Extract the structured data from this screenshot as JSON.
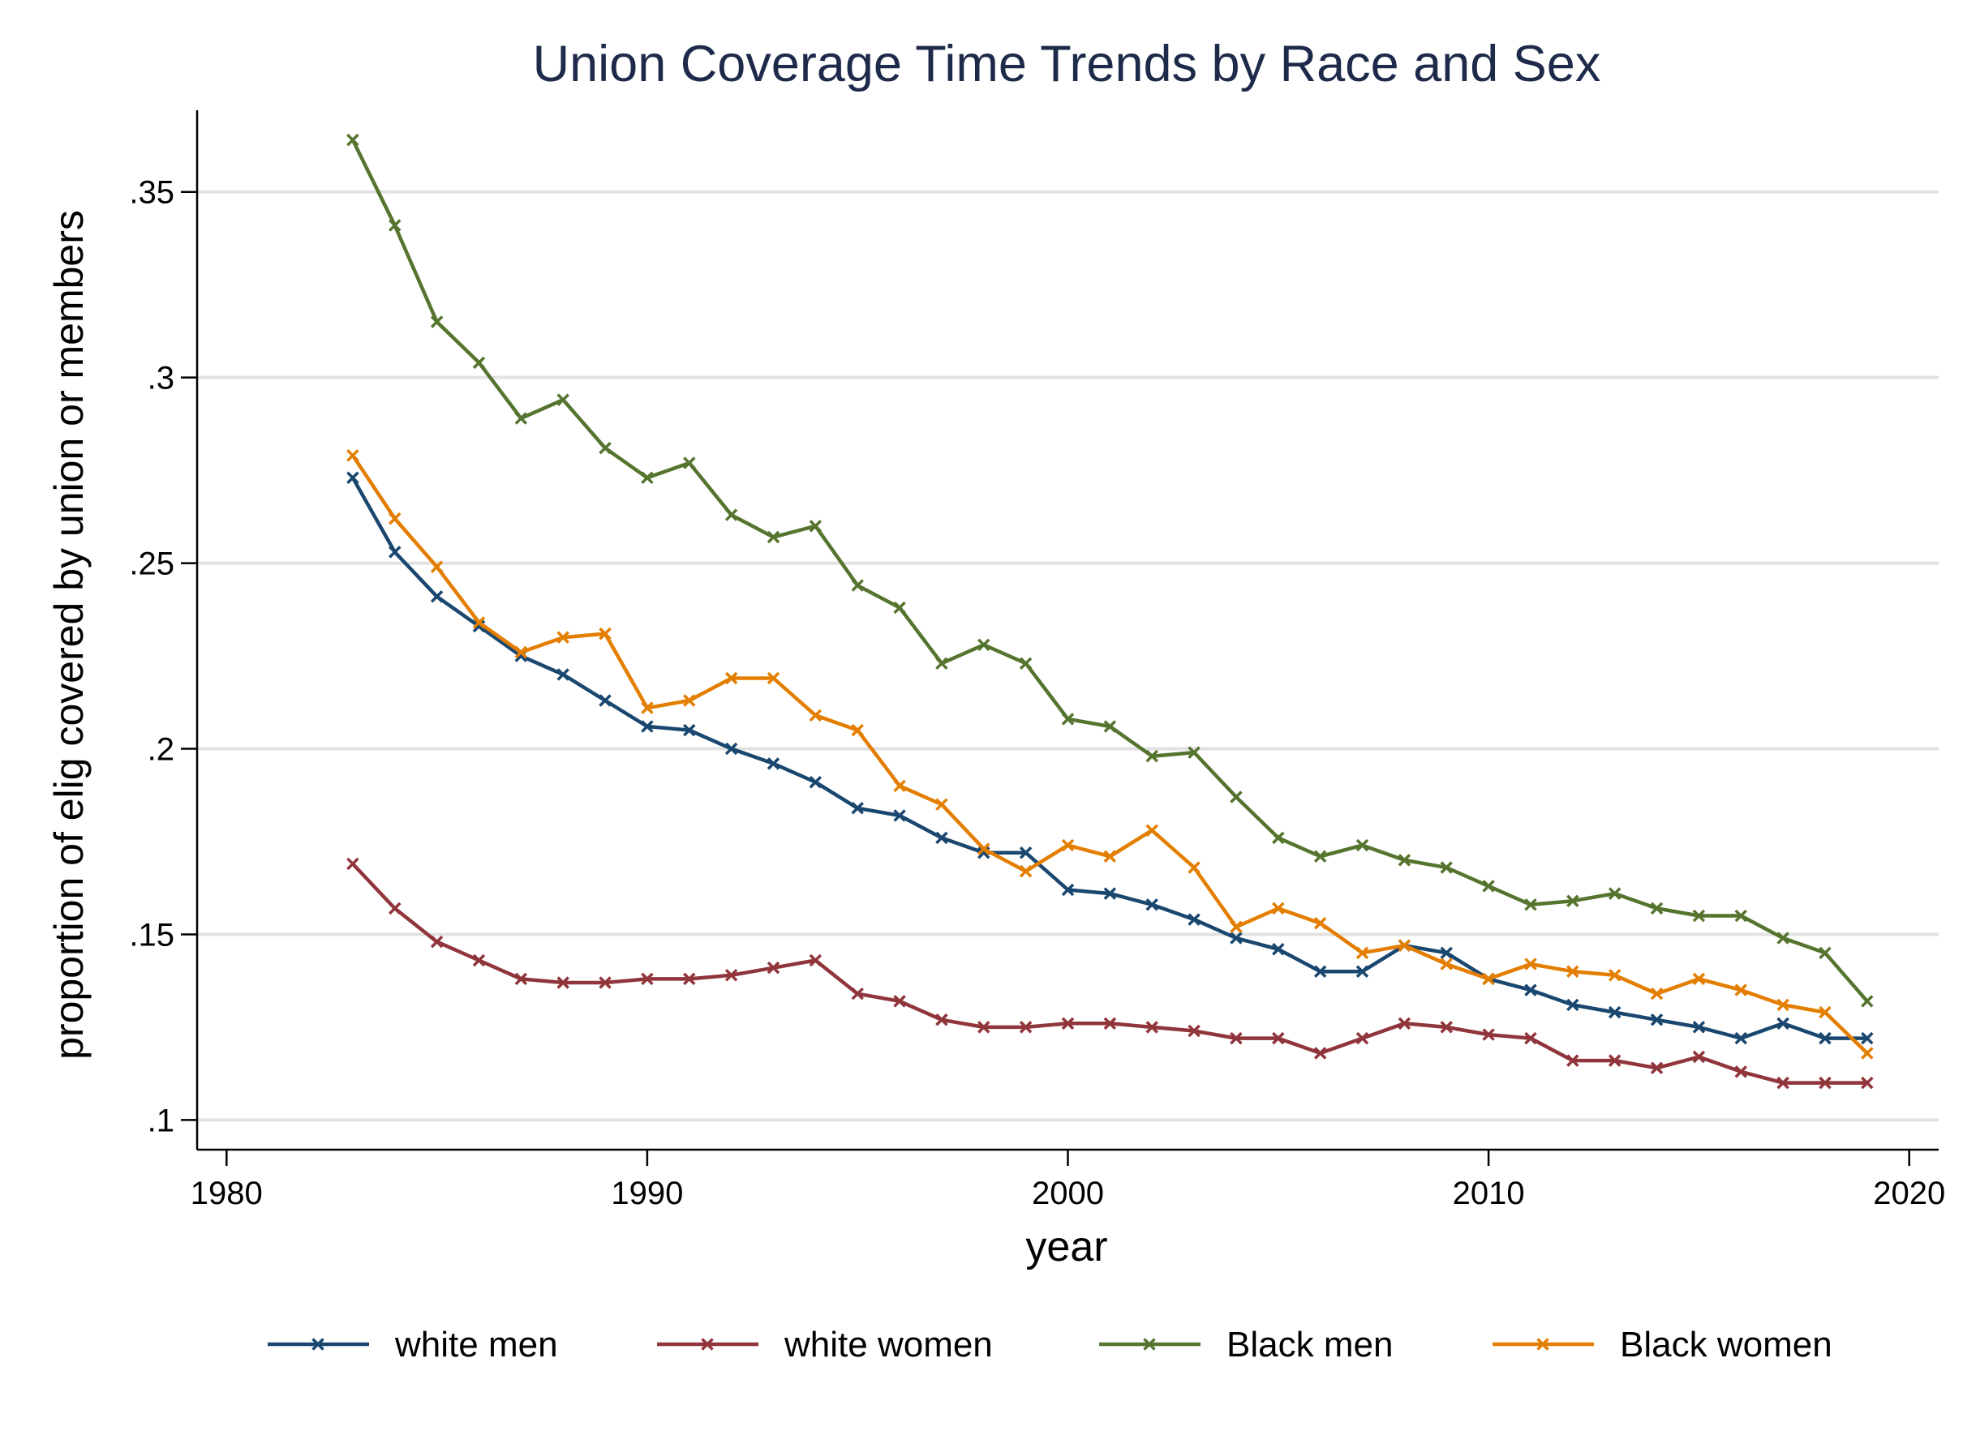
{
  "chart_data": {
    "type": "line",
    "title": "Union Coverage Time Trends by Race and Sex",
    "xlabel": "year",
    "ylabel": "proportion of elig covered by union or members",
    "xlim": [
      1979.3,
      2020.7
    ],
    "ylim": [
      0.092,
      0.372
    ],
    "x_ticks": [
      1980,
      1990,
      2000,
      2010,
      2020
    ],
    "y_ticks": [
      0.1,
      0.15,
      0.2,
      0.25,
      0.3,
      0.35
    ],
    "y_tick_labels": [
      ".1",
      ".15",
      ".2",
      ".25",
      ".3",
      ".35"
    ],
    "grid": "horizontal",
    "legend_position": "bottom",
    "marker": "x",
    "x": [
      1983,
      1984,
      1985,
      1986,
      1987,
      1988,
      1989,
      1990,
      1991,
      1992,
      1993,
      1994,
      1995,
      1996,
      1997,
      1998,
      1999,
      2000,
      2001,
      2002,
      2003,
      2004,
      2005,
      2006,
      2007,
      2008,
      2009,
      2010,
      2011,
      2012,
      2013,
      2014,
      2015,
      2016,
      2017,
      2018,
      2019
    ],
    "series": [
      {
        "name": "white men",
        "color": "#1a476f",
        "values": [
          0.273,
          0.253,
          0.241,
          0.233,
          0.225,
          0.22,
          0.213,
          0.206,
          0.205,
          0.2,
          0.196,
          0.191,
          0.184,
          0.182,
          0.176,
          0.172,
          0.172,
          0.162,
          0.161,
          0.158,
          0.154,
          0.149,
          0.146,
          0.14,
          0.14,
          0.147,
          0.145,
          0.138,
          0.135,
          0.131,
          0.129,
          0.127,
          0.125,
          0.122,
          0.126,
          0.122,
          0.122
        ]
      },
      {
        "name": "white women",
        "color": "#90353b",
        "values": [
          0.169,
          0.157,
          0.148,
          0.143,
          0.138,
          0.137,
          0.137,
          0.138,
          0.138,
          0.139,
          0.141,
          0.143,
          0.134,
          0.132,
          0.127,
          0.125,
          0.125,
          0.126,
          0.126,
          0.125,
          0.124,
          0.122,
          0.122,
          0.118,
          0.122,
          0.126,
          0.125,
          0.123,
          0.122,
          0.116,
          0.116,
          0.114,
          0.117,
          0.113,
          0.11,
          0.11,
          0.11
        ]
      },
      {
        "name": "Black men",
        "color": "#55752f",
        "values": [
          0.364,
          0.341,
          0.315,
          0.304,
          0.289,
          0.294,
          0.281,
          0.273,
          0.277,
          0.263,
          0.257,
          0.26,
          0.244,
          0.238,
          0.223,
          0.228,
          0.223,
          0.208,
          0.206,
          0.198,
          0.199,
          0.187,
          0.176,
          0.171,
          0.174,
          0.17,
          0.168,
          0.163,
          0.158,
          0.159,
          0.161,
          0.157,
          0.155,
          0.155,
          0.149,
          0.145,
          0.132
        ]
      },
      {
        "name": "Black women",
        "color": "#e37e00",
        "values": [
          0.279,
          0.262,
          0.249,
          0.234,
          0.226,
          0.23,
          0.231,
          0.211,
          0.213,
          0.219,
          0.219,
          0.209,
          0.205,
          0.19,
          0.185,
          0.173,
          0.167,
          0.174,
          0.171,
          0.178,
          0.168,
          0.152,
          0.157,
          0.153,
          0.145,
          0.147,
          0.142,
          0.138,
          0.142,
          0.14,
          0.139,
          0.134,
          0.138,
          0.135,
          0.131,
          0.129,
          0.118
        ]
      }
    ]
  }
}
